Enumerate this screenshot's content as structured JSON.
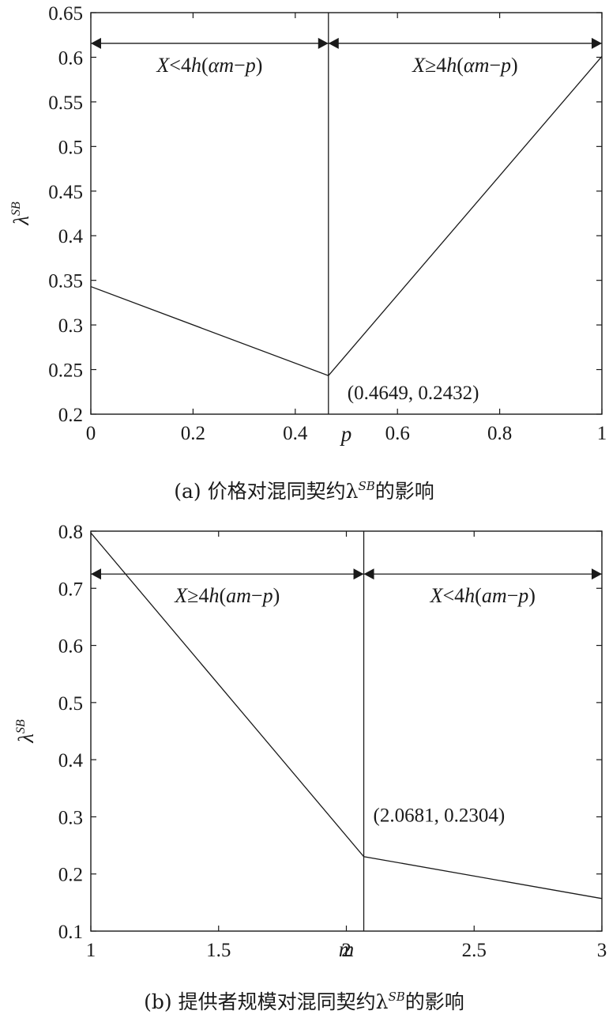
{
  "chart_data": [
    {
      "type": "line",
      "xlabel": "p",
      "ylabel": "λSB",
      "caption": "(a) 价格对混同契约λSB的影响",
      "xlim": [
        0,
        1
      ],
      "ylim": [
        0.2,
        0.65
      ],
      "xticks": [
        0,
        0.2,
        0.4,
        0.6,
        0.8,
        1
      ],
      "xtick_labels": [
        "0",
        "0.2",
        "0.4",
        "0.6",
        "0.8",
        "1"
      ],
      "yticks": [
        0.2,
        0.25,
        0.3,
        0.35,
        0.4,
        0.45,
        0.5,
        0.55,
        0.6,
        0.65
      ],
      "ytick_labels": [
        "0.2",
        "0.25",
        "0.3",
        "0.35",
        "0.4",
        "0.45",
        "0.5",
        "0.55",
        "0.6",
        "0.65"
      ],
      "grid": false,
      "series": [
        {
          "x": [
            0,
            0.4649,
            1
          ],
          "y": [
            0.343,
            0.2432,
            0.601
          ]
        }
      ],
      "vline_x": 0.4649,
      "arrow_y": 0.6156,
      "regions": [
        {
          "label": "X<4h(αm−p)",
          "from": 0,
          "to": 0.4649
        },
        {
          "label": "X≥4h(αm−p)",
          "from": 0.4649,
          "to": 1
        }
      ],
      "annotation": {
        "text": "(0.4649, 0.2432)",
        "x": 0.4649,
        "y": 0.2432
      }
    },
    {
      "type": "line",
      "xlabel": "m",
      "ylabel": "λSB",
      "caption": "(b) 提供者规模对混同契约λSB的影响",
      "xlim": [
        1,
        3
      ],
      "ylim": [
        0.1,
        0.8
      ],
      "xticks": [
        1,
        1.5,
        2,
        2.5,
        3
      ],
      "xtick_labels": [
        "1",
        "1.5",
        "2",
        "2.5",
        "3"
      ],
      "yticks": [
        0.1,
        0.2,
        0.3,
        0.4,
        0.5,
        0.6,
        0.7,
        0.8
      ],
      "ytick_labels": [
        "0.1",
        "0.2",
        "0.3",
        "0.4",
        "0.5",
        "0.6",
        "0.7",
        "0.8"
      ],
      "grid": false,
      "series": [
        {
          "x": [
            1,
            2.0681,
            3
          ],
          "y": [
            0.797,
            0.2304,
            0.157
          ]
        }
      ],
      "vline_x": 2.0681,
      "arrow_y": 0.725,
      "regions": [
        {
          "label": "X≥4h(am−p)",
          "from": 1,
          "to": 2.0681
        },
        {
          "label": "X<4h(am−p)",
          "from": 2.0681,
          "to": 3
        }
      ],
      "annotation": {
        "text": "(2.0681, 0.2304)",
        "x": 2.0681,
        "y": 0.2304
      }
    }
  ]
}
